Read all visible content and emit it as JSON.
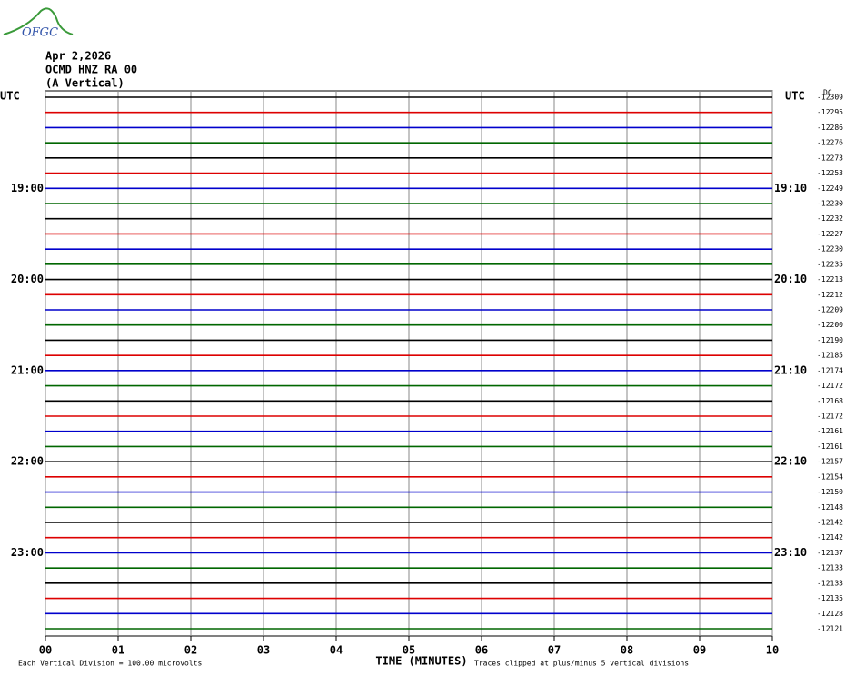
{
  "chart_data": {
    "type": "helicorder",
    "logo_text": "OFGC",
    "date": "Apr 2,2026",
    "station": "OCMD HNZ RA 00",
    "component": "(A Vertical)",
    "left_axis_label": "UTC",
    "right_axis_label": "UTC",
    "offset_header": "DC",
    "xlabel": "TIME (MINUTES)",
    "scale_note": "Each Vertical Division =  100.00 microvolts",
    "clip_note": "Traces clipped at plus/minus 5 vertical divisions",
    "xlim": [
      0,
      10
    ],
    "xticks": [
      {
        "value": 0,
        "label": "00"
      },
      {
        "value": 1,
        "label": "01"
      },
      {
        "value": 2,
        "label": "02"
      },
      {
        "value": 3,
        "label": "03"
      },
      {
        "value": 4,
        "label": "04"
      },
      {
        "value": 5,
        "label": "05"
      },
      {
        "value": 6,
        "label": "06"
      },
      {
        "value": 7,
        "label": "07"
      },
      {
        "value": 8,
        "label": "08"
      },
      {
        "value": 9,
        "label": "09"
      },
      {
        "value": 10,
        "label": "10"
      }
    ],
    "trace_colors": [
      "#000000",
      "#dd0000",
      "#0000cc",
      "#006600"
    ],
    "left_labels": [
      null,
      null,
      null,
      null,
      null,
      null,
      "19:00",
      null,
      null,
      null,
      null,
      null,
      "20:00",
      null,
      null,
      null,
      null,
      null,
      "21:00",
      null,
      null,
      null,
      null,
      null,
      "22:00",
      null,
      null,
      null,
      null,
      null,
      "23:00",
      null,
      null,
      null,
      null,
      null
    ],
    "right_labels": [
      null,
      null,
      null,
      null,
      null,
      null,
      "19:10",
      null,
      null,
      null,
      null,
      null,
      "20:10",
      null,
      null,
      null,
      null,
      null,
      "21:10",
      null,
      null,
      null,
      null,
      null,
      "22:10",
      null,
      null,
      null,
      null,
      null,
      "23:10",
      null,
      null,
      null,
      null,
      null
    ],
    "offsets": [
      -12309,
      -12295,
      -12286,
      -12276,
      -12273,
      -12253,
      -12249,
      -12230,
      -12232,
      -12227,
      -12230,
      -12235,
      -12213,
      -12212,
      -12209,
      -12200,
      -12190,
      -12185,
      -12174,
      -12172,
      -12168,
      -12172,
      -12161,
      -12161,
      -12157,
      -12154,
      -12150,
      -12148,
      -12142,
      -12142,
      -12137,
      -12133,
      -12133,
      -12135,
      -12128,
      -12121
    ]
  }
}
